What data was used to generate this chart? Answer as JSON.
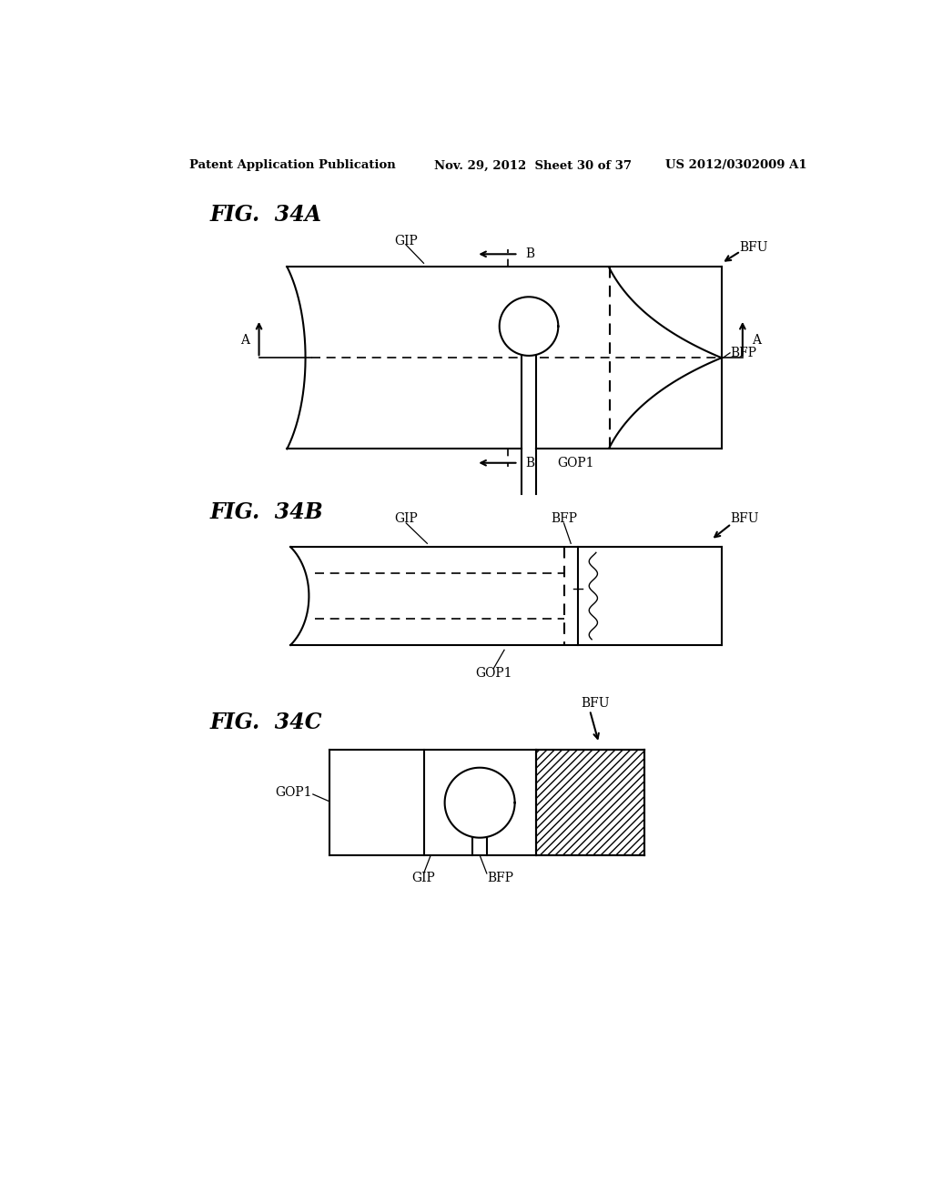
{
  "title_left": "Patent Application Publication",
  "title_mid": "Nov. 29, 2012  Sheet 30 of 37",
  "title_right": "US 2012/0302009 A1",
  "fig34A_label": "FIG.  34A",
  "fig34B_label": "FIG.  34B",
  "fig34C_label": "FIG.  34C",
  "bg_color": "#ffffff",
  "line_color": "#000000",
  "label_fontsize": 10,
  "title_fontsize": 9.5,
  "fig_label_fontsize": 17
}
